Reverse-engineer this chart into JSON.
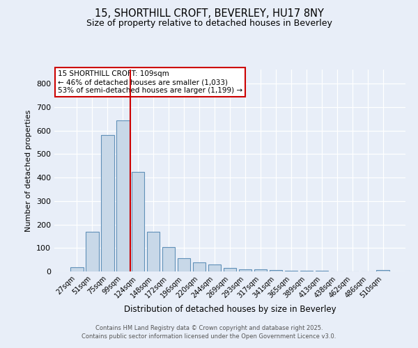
{
  "title_line1": "15, SHORTHILL CROFT, BEVERLEY, HU17 8NY",
  "title_line2": "Size of property relative to detached houses in Beverley",
  "xlabel": "Distribution of detached houses by size in Beverley",
  "ylabel": "Number of detached properties",
  "annotation_line1": "15 SHORTHILL CROFT: 109sqm",
  "annotation_line2": "← 46% of detached houses are smaller (1,033)",
  "annotation_line3": "53% of semi-detached houses are larger (1,199) →",
  "bar_labels": [
    "27sqm",
    "51sqm",
    "75sqm",
    "99sqm",
    "124sqm",
    "148sqm",
    "172sqm",
    "196sqm",
    "220sqm",
    "244sqm",
    "269sqm",
    "293sqm",
    "317sqm",
    "341sqm",
    "365sqm",
    "389sqm",
    "413sqm",
    "438sqm",
    "462sqm",
    "486sqm",
    "510sqm"
  ],
  "bar_values": [
    18,
    168,
    580,
    643,
    425,
    170,
    104,
    56,
    40,
    30,
    14,
    10,
    8,
    6,
    4,
    4,
    2,
    0,
    0,
    0,
    5
  ],
  "bar_color": "#c8d8e8",
  "bar_edge_color": "#6090b8",
  "vline_color": "#cc0000",
  "vline_bar_index": 3,
  "ylim": [
    0,
    860
  ],
  "yticks": [
    0,
    100,
    200,
    300,
    400,
    500,
    600,
    700,
    800
  ],
  "background_color": "#e8eef8",
  "grid_color": "#ffffff",
  "footer_line1": "Contains HM Land Registry data © Crown copyright and database right 2025.",
  "footer_line2": "Contains public sector information licensed under the Open Government Licence v3.0."
}
